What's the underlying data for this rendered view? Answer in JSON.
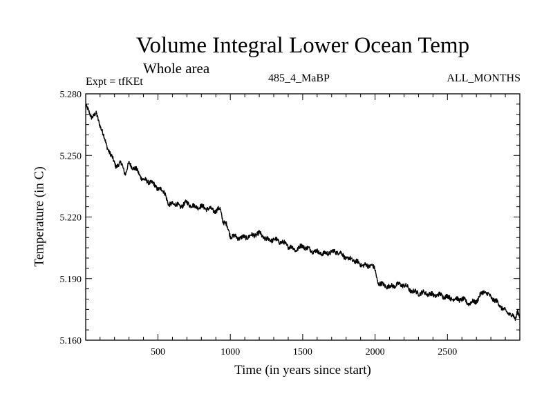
{
  "chart_data": {
    "type": "line",
    "title": "Volume Integral Lower Ocean Temp",
    "subtitle": "Whole area",
    "annotations": {
      "experiment": "Expt = tfKEt",
      "run": "485_4_MaBP",
      "period": "ALL_MONTHS"
    },
    "xlabel": "Time (in years since start)",
    "ylabel": "Temperature (in C)",
    "xlim": [
      1,
      3000
    ],
    "ylim": [
      5.16,
      5.28
    ],
    "xticks": [
      500,
      1000,
      1500,
      2000,
      2500
    ],
    "yticks": [
      "5.160",
      "5.190",
      "5.220",
      "5.250",
      "5.280"
    ],
    "grid": false,
    "series": [
      {
        "color": "#000000",
        "x": [
          1,
          40,
          75,
          100,
          140,
          175,
          210,
          250,
          275,
          300,
          350,
          400,
          450,
          500,
          550,
          575,
          600,
          650,
          700,
          750,
          800,
          850,
          900,
          930,
          950,
          975,
          1000,
          1050,
          1100,
          1150,
          1200,
          1250,
          1300,
          1350,
          1400,
          1450,
          1500,
          1550,
          1600,
          1650,
          1700,
          1750,
          1800,
          1850,
          1900,
          1950,
          1975,
          2000,
          2020,
          2050,
          2100,
          2150,
          2200,
          2250,
          2300,
          2350,
          2400,
          2450,
          2500,
          2550,
          2600,
          2650,
          2700,
          2750,
          2800,
          2850,
          2900,
          2930,
          2950,
          2970,
          2985,
          3000
        ],
        "y": [
          5.274,
          5.269,
          5.27,
          5.265,
          5.256,
          5.25,
          5.245,
          5.246,
          5.241,
          5.246,
          5.243,
          5.238,
          5.237,
          5.234,
          5.232,
          5.225,
          5.227,
          5.225,
          5.227,
          5.225,
          5.225,
          5.224,
          5.223,
          5.224,
          5.218,
          5.216,
          5.211,
          5.21,
          5.21,
          5.211,
          5.212,
          5.209,
          5.209,
          5.208,
          5.206,
          5.204,
          5.206,
          5.204,
          5.203,
          5.202,
          5.203,
          5.203,
          5.2,
          5.199,
          5.197,
          5.196,
          5.197,
          5.194,
          5.188,
          5.187,
          5.186,
          5.187,
          5.187,
          5.184,
          5.183,
          5.183,
          5.182,
          5.182,
          5.181,
          5.18,
          5.18,
          5.178,
          5.179,
          5.184,
          5.181,
          5.178,
          5.174,
          5.173,
          5.172,
          5.17,
          5.175,
          5.171
        ]
      }
    ]
  }
}
